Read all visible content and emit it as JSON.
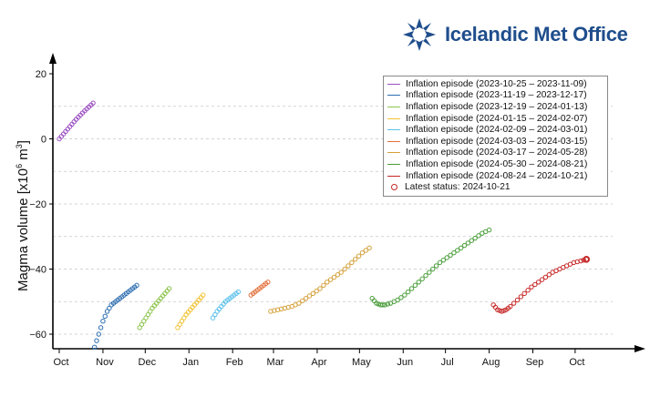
{
  "branding": {
    "name": "Icelandic Met Office",
    "color": "#1f4e8c"
  },
  "chart_data": {
    "type": "scatter",
    "title": "",
    "ylabel_prefix": "Magma volume [x10",
    "ylabel_exp": "6",
    "ylabel_unit": " m",
    "ylabel_exp2": "3",
    "ylabel_suffix": "]",
    "xlabel": "",
    "x_unit": "days since 2023-10-01",
    "xlim": [
      0,
      390
    ],
    "ylim": [
      -64,
      22
    ],
    "yticks": [
      20,
      0,
      -20,
      -40,
      -60
    ],
    "ytick_labels": [
      "20",
      "0",
      "−20",
      "−40",
      "−60"
    ],
    "xticks": [
      0,
      31,
      61,
      92,
      123,
      152,
      183,
      213,
      244,
      274,
      305,
      336,
      366
    ],
    "xtick_labels": [
      "Oct",
      "Nov",
      "Dec",
      "Jan",
      "Feb",
      "Mar",
      "Apr",
      "May",
      "Jun",
      "Jul",
      "Aug",
      "Sep",
      "Oct"
    ],
    "grid": "horizontal-dashed",
    "legend_position": "top-right",
    "series": [
      {
        "name": "Inflation episode (2023-10-25 – 2023-11-09)",
        "color": "#9b4fc2",
        "x": [
          0,
          3,
          6,
          9,
          12,
          15,
          18,
          21,
          24
        ],
        "y": [
          0,
          1.5,
          3,
          4.5,
          6,
          7.3,
          8.6,
          9.8,
          11
        ]
      },
      {
        "name": "Inflation episode (2023-11-19 – 2023-12-17)",
        "color": "#2b6cb0",
        "x": [
          25,
          28,
          31,
          34,
          37,
          40,
          43,
          46,
          49,
          52,
          55
        ],
        "y": [
          -64,
          -60,
          -56,
          -53,
          -51,
          -50,
          -49,
          -48,
          -47,
          -46,
          -45
        ]
      },
      {
        "name": "Inflation episode (2023-12-19 – 2024-01-13)",
        "color": "#8bc34a",
        "x": [
          57,
          60,
          63,
          66,
          69,
          72,
          75,
          78
        ],
        "y": [
          -58,
          -56,
          -54,
          -52,
          -50.5,
          -49,
          -47.5,
          -46
        ]
      },
      {
        "name": "Inflation episode (2024-01-15 – 2024-02-07)",
        "color": "#f1c232",
        "x": [
          84,
          87,
          90,
          93,
          96,
          99,
          102
        ],
        "y": [
          -58,
          -56,
          -54,
          -52.5,
          -51,
          -49.5,
          -48
        ]
      },
      {
        "name": "Inflation episode (2024-02-09 – 2024-03-01)",
        "color": "#5bc0eb",
        "x": [
          109,
          112,
          115,
          118,
          121,
          124,
          127
        ],
        "y": [
          -55,
          -53,
          -51.5,
          -50,
          -49,
          -48,
          -47
        ]
      },
      {
        "name": "Inflation episode (2024-03-03 – 2024-03-15)",
        "color": "#e2703a",
        "x": [
          136,
          139,
          142,
          145,
          148
        ],
        "y": [
          -48,
          -47,
          -46,
          -45,
          -44
        ]
      },
      {
        "name": "Inflation episode (2024-03-17 – 2024-05-28)",
        "color": "#d4a03a",
        "x": [
          150,
          155,
          160,
          165,
          170,
          175,
          180,
          185,
          190,
          195,
          200,
          205,
          210,
          215,
          220
        ],
        "y": [
          -53,
          -52.5,
          -52,
          -51.5,
          -50.5,
          -49,
          -47.5,
          -46,
          -44,
          -42.5,
          -41,
          -39,
          -37,
          -35,
          -33.5
        ]
      },
      {
        "name": "Inflation episode (2024-05-30 – 2024-08-21)",
        "color": "#4a9e3a",
        "x": [
          222,
          225,
          228,
          231,
          235,
          240,
          245,
          250,
          255,
          260,
          265,
          270,
          275,
          280,
          285,
          290,
          295,
          300,
          305
        ],
        "y": [
          -49,
          -50.5,
          -51,
          -51,
          -50.5,
          -49.5,
          -48,
          -46,
          -44,
          -42,
          -40,
          -38,
          -36.5,
          -35,
          -33.5,
          -32,
          -30.5,
          -29,
          -28
        ]
      },
      {
        "name": "Inflation episode (2024-08-24 – 2024-10-21)",
        "color": "#c62828",
        "x": [
          308,
          311,
          314,
          317,
          320,
          325,
          330,
          335,
          340,
          345,
          350,
          355,
          360,
          365,
          370,
          374
        ],
        "y": [
          -51,
          -52.5,
          -53,
          -52.5,
          -51.5,
          -49.5,
          -47.5,
          -45.5,
          -44,
          -42.5,
          -41,
          -40,
          -39,
          -38,
          -37.5,
          -37
        ]
      }
    ],
    "latest_status": {
      "name": "Latest status: 2024-10-21",
      "color": "#c62828",
      "x": 374,
      "y": -37
    }
  }
}
